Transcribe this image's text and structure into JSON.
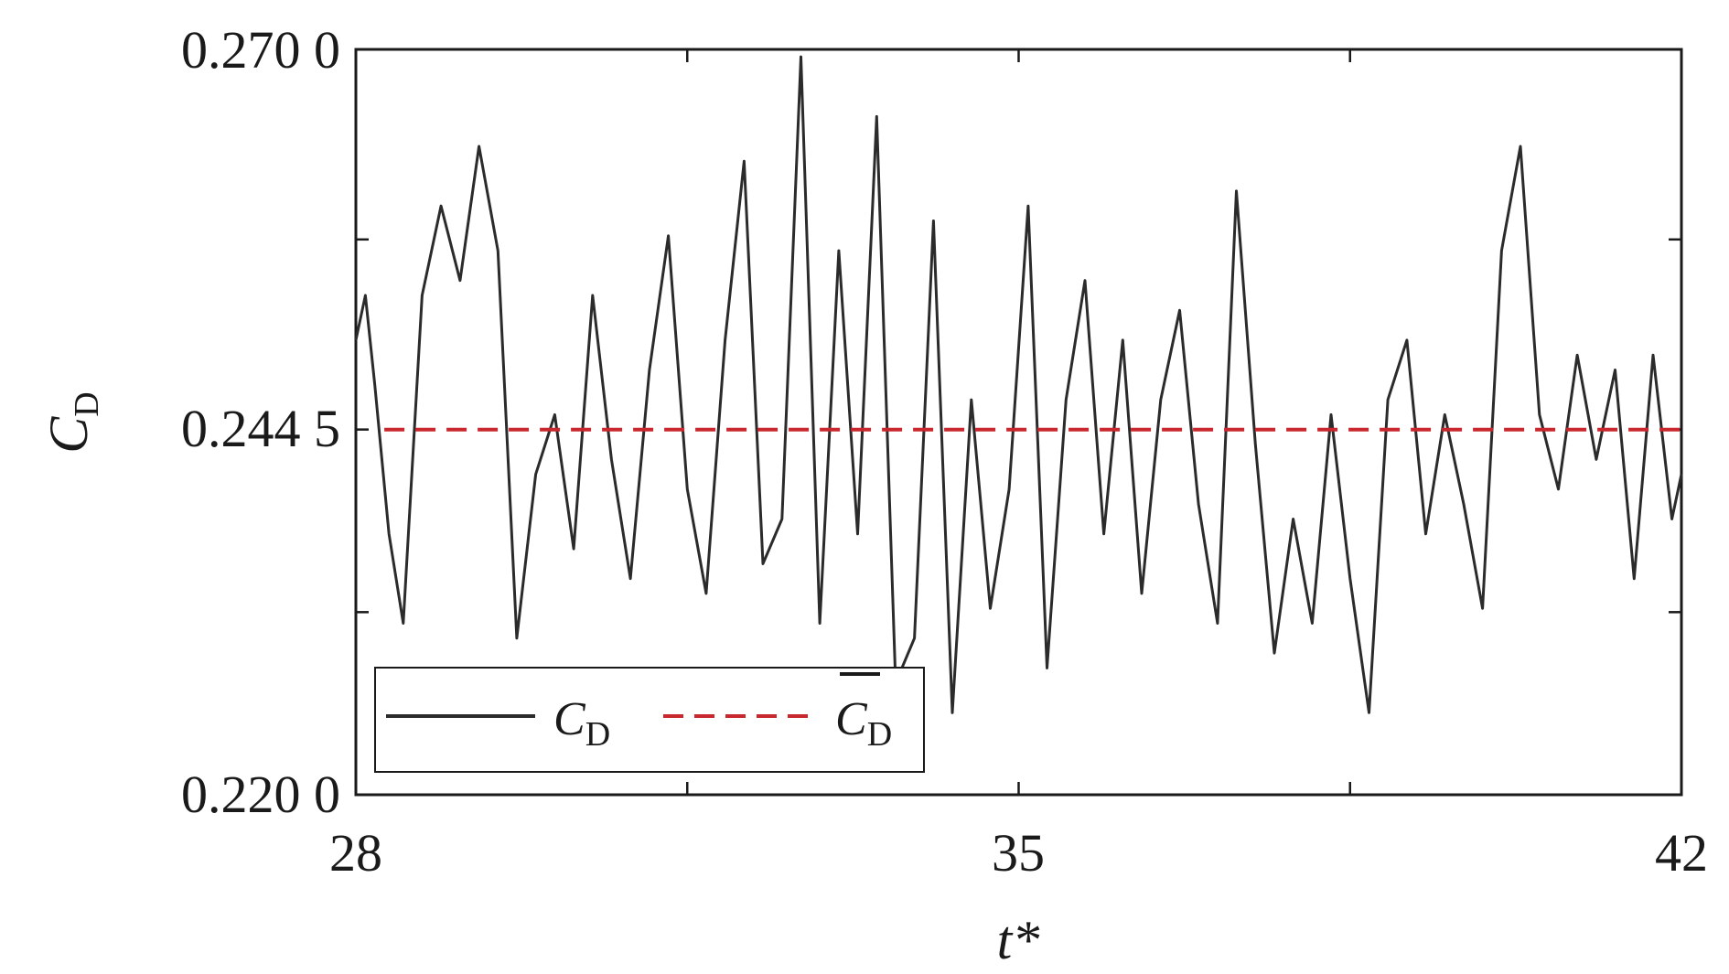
{
  "chart_data": {
    "type": "line",
    "xlabel": "t*",
    "ylabel": "C_D",
    "xlim": [
      28,
      42
    ],
    "ylim": [
      0.22,
      0.27
    ],
    "x_ticks": [
      28,
      31.5,
      35,
      38.5,
      42
    ],
    "x_tick_labels": [
      "28",
      "",
      "35",
      "",
      "42"
    ],
    "y_ticks": [
      0.22,
      0.23225,
      0.2445,
      0.25725,
      0.27
    ],
    "y_tick_labels": [
      "0.220 0",
      "",
      "0.244 5",
      "",
      "0.270 0"
    ],
    "grid": false,
    "legend_position": "bottom-left",
    "series": [
      {
        "name": "C_D",
        "style": "solid",
        "color": "#2b2b2b",
        "x": [
          28.0,
          28.1,
          28.2,
          28.35,
          28.5,
          28.7,
          28.9,
          29.1,
          29.3,
          29.5,
          29.7,
          29.9,
          30.1,
          30.3,
          30.5,
          30.7,
          30.9,
          31.1,
          31.3,
          31.5,
          31.7,
          31.9,
          32.1,
          32.3,
          32.5,
          32.7,
          32.9,
          33.1,
          33.3,
          33.5,
          33.7,
          33.9,
          34.1,
          34.3,
          34.5,
          34.7,
          34.9,
          35.1,
          35.3,
          35.5,
          35.7,
          35.9,
          36.1,
          36.3,
          36.5,
          36.7,
          36.9,
          37.1,
          37.3,
          37.5,
          37.7,
          37.9,
          38.1,
          38.3,
          38.5,
          38.7,
          38.9,
          39.1,
          39.3,
          39.5,
          39.7,
          39.9,
          40.1,
          40.3,
          40.5,
          40.7,
          40.9,
          41.1,
          41.3,
          41.5,
          41.7,
          41.9,
          42.0
        ],
        "y": [
          0.2505,
          0.2535,
          0.2475,
          0.2375,
          0.2315,
          0.2535,
          0.2595,
          0.2545,
          0.2635,
          0.2565,
          0.2305,
          0.2415,
          0.2455,
          0.2365,
          0.2535,
          0.2425,
          0.2345,
          0.2485,
          0.2575,
          0.2405,
          0.2335,
          0.2505,
          0.2625,
          0.2355,
          0.2385,
          0.2695,
          0.2315,
          0.2565,
          0.2375,
          0.2655,
          0.2275,
          0.2305,
          0.2585,
          0.2255,
          0.2465,
          0.2325,
          0.2405,
          0.2595,
          0.2285,
          0.2465,
          0.2545,
          0.2375,
          0.2505,
          0.2335,
          0.2465,
          0.2525,
          0.2395,
          0.2315,
          0.2605,
          0.2435,
          0.2295,
          0.2385,
          0.2315,
          0.2455,
          0.2345,
          0.2255,
          0.2465,
          0.2505,
          0.2375,
          0.2455,
          0.2395,
          0.2325,
          0.2565,
          0.2635,
          0.2455,
          0.2405,
          0.2495,
          0.2425,
          0.2485,
          0.2345,
          0.2495,
          0.2385,
          0.2415
        ]
      },
      {
        "name": "C̄_D",
        "style": "dashed",
        "color": "#c8282d",
        "x": [
          28.3,
          42.0
        ],
        "y": [
          0.2445,
          0.2445
        ]
      }
    ]
  }
}
